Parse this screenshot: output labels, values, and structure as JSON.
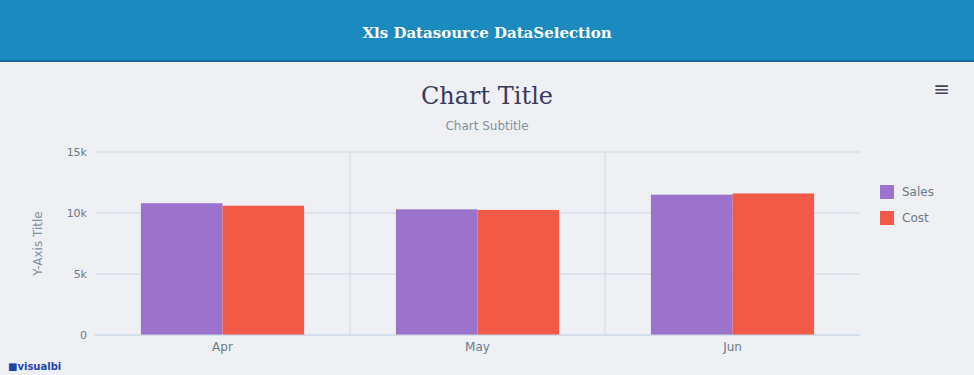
{
  "chart_data": {
    "type": "bar",
    "title": "Chart Title",
    "subtitle": "Chart Subtitle",
    "ylabel": "Y-Axis Title",
    "categories": [
      "Apr",
      "May",
      "Jun"
    ],
    "series": [
      {
        "name": "Sales",
        "color": "#9b72cc",
        "values": [
          10800,
          10300,
          11500
        ]
      },
      {
        "name": "Cost",
        "color": "#f05a46",
        "values": [
          10600,
          10250,
          11600
        ]
      }
    ],
    "ylim": [
      0,
      15000
    ],
    "yticks": [
      0,
      {
        "value": 5000,
        "label": "5k"
      },
      {
        "value": 10000,
        "label": "10k"
      },
      {
        "value": 15000,
        "label": "15k"
      }
    ],
    "grid": true,
    "legend": "right",
    "annotations": [
      "Xls Datasource DataSelection",
      "≡",
      "■visualbi"
    ]
  }
}
